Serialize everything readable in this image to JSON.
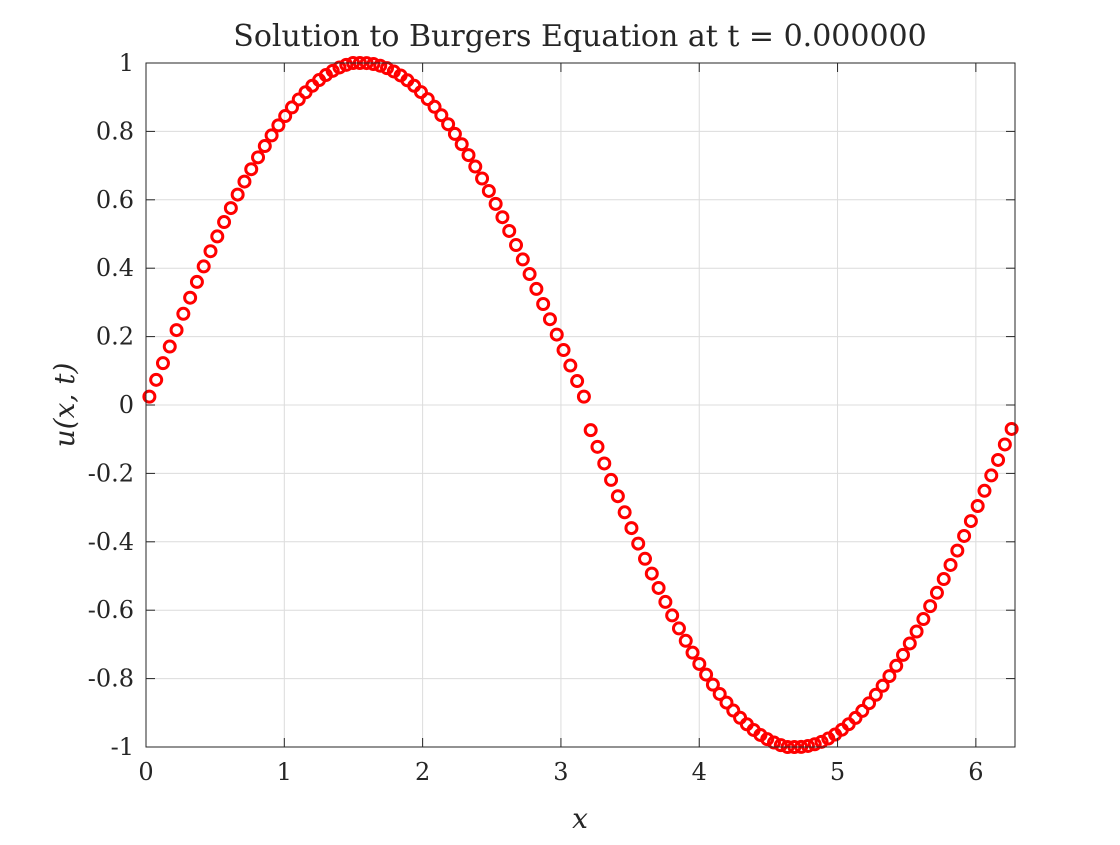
{
  "chart_data": {
    "type": "scatter",
    "title": "Solution to Burgers Equation at t = 0.000000",
    "xlabel": "x",
    "ylabel": "u(x, t)",
    "xlim": [
      0,
      6.283
    ],
    "ylim": [
      -1,
      1
    ],
    "x_ticks": [
      "0",
      "1",
      "2",
      "3",
      "4",
      "5",
      "6"
    ],
    "y_ticks": [
      "1",
      "0.8",
      "0.6",
      "0.4",
      "0.2",
      "0",
      "-0.2",
      "-0.4",
      "-0.6",
      "-0.8",
      "-1"
    ],
    "grid": true,
    "marker": "o",
    "marker_color": "#ff0000",
    "series": [
      {
        "x": [
          0.0245,
          0.0736,
          0.1227,
          0.1718,
          0.2209,
          0.27,
          0.3191,
          0.3682,
          0.4172,
          0.4663,
          0.5154,
          0.5645,
          0.6136,
          0.6627,
          0.7118,
          0.7609,
          0.81,
          0.859,
          0.9081,
          0.9572,
          1.0063,
          1.0554,
          1.1045,
          1.1536,
          1.2027,
          1.2517,
          1.3008,
          1.3499,
          1.399,
          1.4481,
          1.4972,
          1.5463,
          1.5954,
          1.6444,
          1.6935,
          1.7426,
          1.7917,
          1.8408,
          1.8899,
          1.939,
          1.9881,
          2.0371,
          2.0862,
          2.1353,
          2.1844,
          2.2335,
          2.2826,
          2.3317,
          2.3808,
          2.4298,
          2.4789,
          2.528,
          2.5771,
          2.6262,
          2.6753,
          2.7244,
          2.7735,
          2.8225,
          2.8716,
          2.9207,
          2.9698,
          3.0189,
          3.068,
          3.1171,
          3.1662,
          3.2152,
          3.2643,
          3.3134,
          3.3625,
          3.4116,
          3.4607,
          3.5098,
          3.5588,
          3.6079,
          3.657,
          3.7061,
          3.7552,
          3.8043,
          3.8534,
          3.9025,
          3.9515,
          4.0006,
          4.0497,
          4.0988,
          4.1479,
          4.197,
          4.2461,
          4.2952,
          4.3442,
          4.3933,
          4.4424,
          4.4915,
          4.5406,
          4.5897,
          4.6388,
          4.6879,
          4.7369,
          4.786,
          4.8351,
          4.8842,
          4.9333,
          4.9824,
          5.0315,
          5.0806,
          5.1296,
          5.1787,
          5.2278,
          5.2769,
          5.326,
          5.3751,
          5.4242,
          5.4733,
          5.5223,
          5.5714,
          5.6205,
          5.6696,
          5.7187,
          5.7678,
          5.8169,
          5.866,
          5.915,
          5.9641,
          6.0132,
          6.0623,
          6.1114,
          6.1605,
          6.2096,
          6.2587
        ],
        "values": [
          0.0245,
          0.0736,
          0.1224,
          0.171,
          0.2191,
          0.2667,
          0.3137,
          0.3599,
          0.4052,
          0.4496,
          0.4929,
          0.535,
          0.5758,
          0.6152,
          0.6532,
          0.6895,
          0.7242,
          0.7572,
          0.7883,
          0.8176,
          0.8449,
          0.8702,
          0.8934,
          0.9145,
          0.9335,
          0.9502,
          0.9648,
          0.9771,
          0.987,
          0.9947,
          1.0,
          1.0,
          0.9997,
          0.997,
          0.9921,
          0.9849,
          0.9753,
          0.9635,
          0.9495,
          0.9333,
          0.9149,
          0.8945,
          0.872,
          0.8474,
          0.821,
          0.7927,
          0.7626,
          0.7307,
          0.6973,
          0.6623,
          0.6258,
          0.5881,
          0.5491,
          0.5089,
          0.4678,
          0.4257,
          0.3829,
          0.3394,
          0.2953,
          0.2508,
          0.2059,
          0.1607,
          0.1154,
          0.0701,
          0.0245,
          -0.0736,
          -0.1224,
          -0.171,
          -0.2191,
          -0.2667,
          -0.3137,
          -0.3599,
          -0.4052,
          -0.4496,
          -0.4929,
          -0.535,
          -0.5758,
          -0.6152,
          -0.6532,
          -0.6895,
          -0.7242,
          -0.7572,
          -0.7883,
          -0.8176,
          -0.8449,
          -0.8702,
          -0.8934,
          -0.9145,
          -0.9335,
          -0.9502,
          -0.9648,
          -0.9771,
          -0.987,
          -0.9947,
          -1.0,
          -1.0,
          -0.9997,
          -0.997,
          -0.9921,
          -0.9849,
          -0.9753,
          -0.9635,
          -0.9495,
          -0.9333,
          -0.9149,
          -0.8945,
          -0.872,
          -0.8474,
          -0.821,
          -0.7927,
          -0.7626,
          -0.7307,
          -0.6973,
          -0.6623,
          -0.6258,
          -0.5881,
          -0.5491,
          -0.5089,
          -0.4678,
          -0.4257,
          -0.3829,
          -0.3394,
          -0.2953,
          -0.2508,
          -0.2059,
          -0.1607,
          -0.1154,
          -0.0701
        ]
      }
    ]
  }
}
